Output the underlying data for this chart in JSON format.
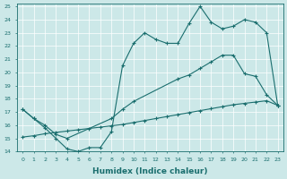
{
  "xlabel": "Humidex (Indice chaleur)",
  "xlim": [
    -0.5,
    23.5
  ],
  "ylim": [
    14,
    25.2
  ],
  "yticks": [
    14,
    15,
    16,
    17,
    18,
    19,
    20,
    21,
    22,
    23,
    24,
    25
  ],
  "xticks": [
    0,
    1,
    2,
    3,
    4,
    5,
    6,
    7,
    8,
    9,
    10,
    11,
    12,
    13,
    14,
    15,
    16,
    17,
    18,
    19,
    20,
    21,
    22,
    23
  ],
  "bg_color": "#cce8e8",
  "grid_color": "#b0d0d0",
  "line_color": "#1a6e6e",
  "line1_x": [
    0,
    1,
    2,
    3,
    4,
    5,
    6,
    7,
    8,
    9,
    10,
    11,
    12,
    13,
    14,
    15,
    16,
    17,
    18,
    19,
    20,
    21,
    22,
    23
  ],
  "line1_y": [
    17.2,
    16.5,
    15.8,
    15.0,
    14.2,
    14.0,
    14.3,
    14.3,
    15.5,
    20.5,
    22.2,
    23.0,
    22.5,
    22.2,
    22.2,
    23.7,
    25.0,
    23.8,
    23.3,
    23.5,
    24.0,
    23.8,
    23.0,
    17.5
  ],
  "line2_x": [
    0,
    1,
    2,
    3,
    4,
    8,
    9,
    10,
    14,
    15,
    16,
    17,
    18,
    19,
    20,
    21,
    22,
    23
  ],
  "line2_y": [
    17.2,
    16.5,
    16.0,
    15.3,
    15.0,
    16.5,
    17.2,
    17.8,
    19.5,
    19.8,
    20.3,
    20.8,
    21.3,
    21.3,
    19.9,
    19.7,
    18.3,
    17.5
  ],
  "line3_x": [
    0,
    1,
    2,
    3,
    4,
    5,
    6,
    7,
    8,
    9,
    10,
    11,
    12,
    13,
    14,
    15,
    16,
    17,
    18,
    19,
    20,
    21,
    22,
    23
  ],
  "line3_y": [
    15.1,
    15.2,
    15.35,
    15.45,
    15.55,
    15.65,
    15.75,
    15.85,
    15.95,
    16.05,
    16.2,
    16.35,
    16.5,
    16.65,
    16.8,
    16.95,
    17.1,
    17.25,
    17.4,
    17.55,
    17.65,
    17.75,
    17.85,
    17.5
  ]
}
